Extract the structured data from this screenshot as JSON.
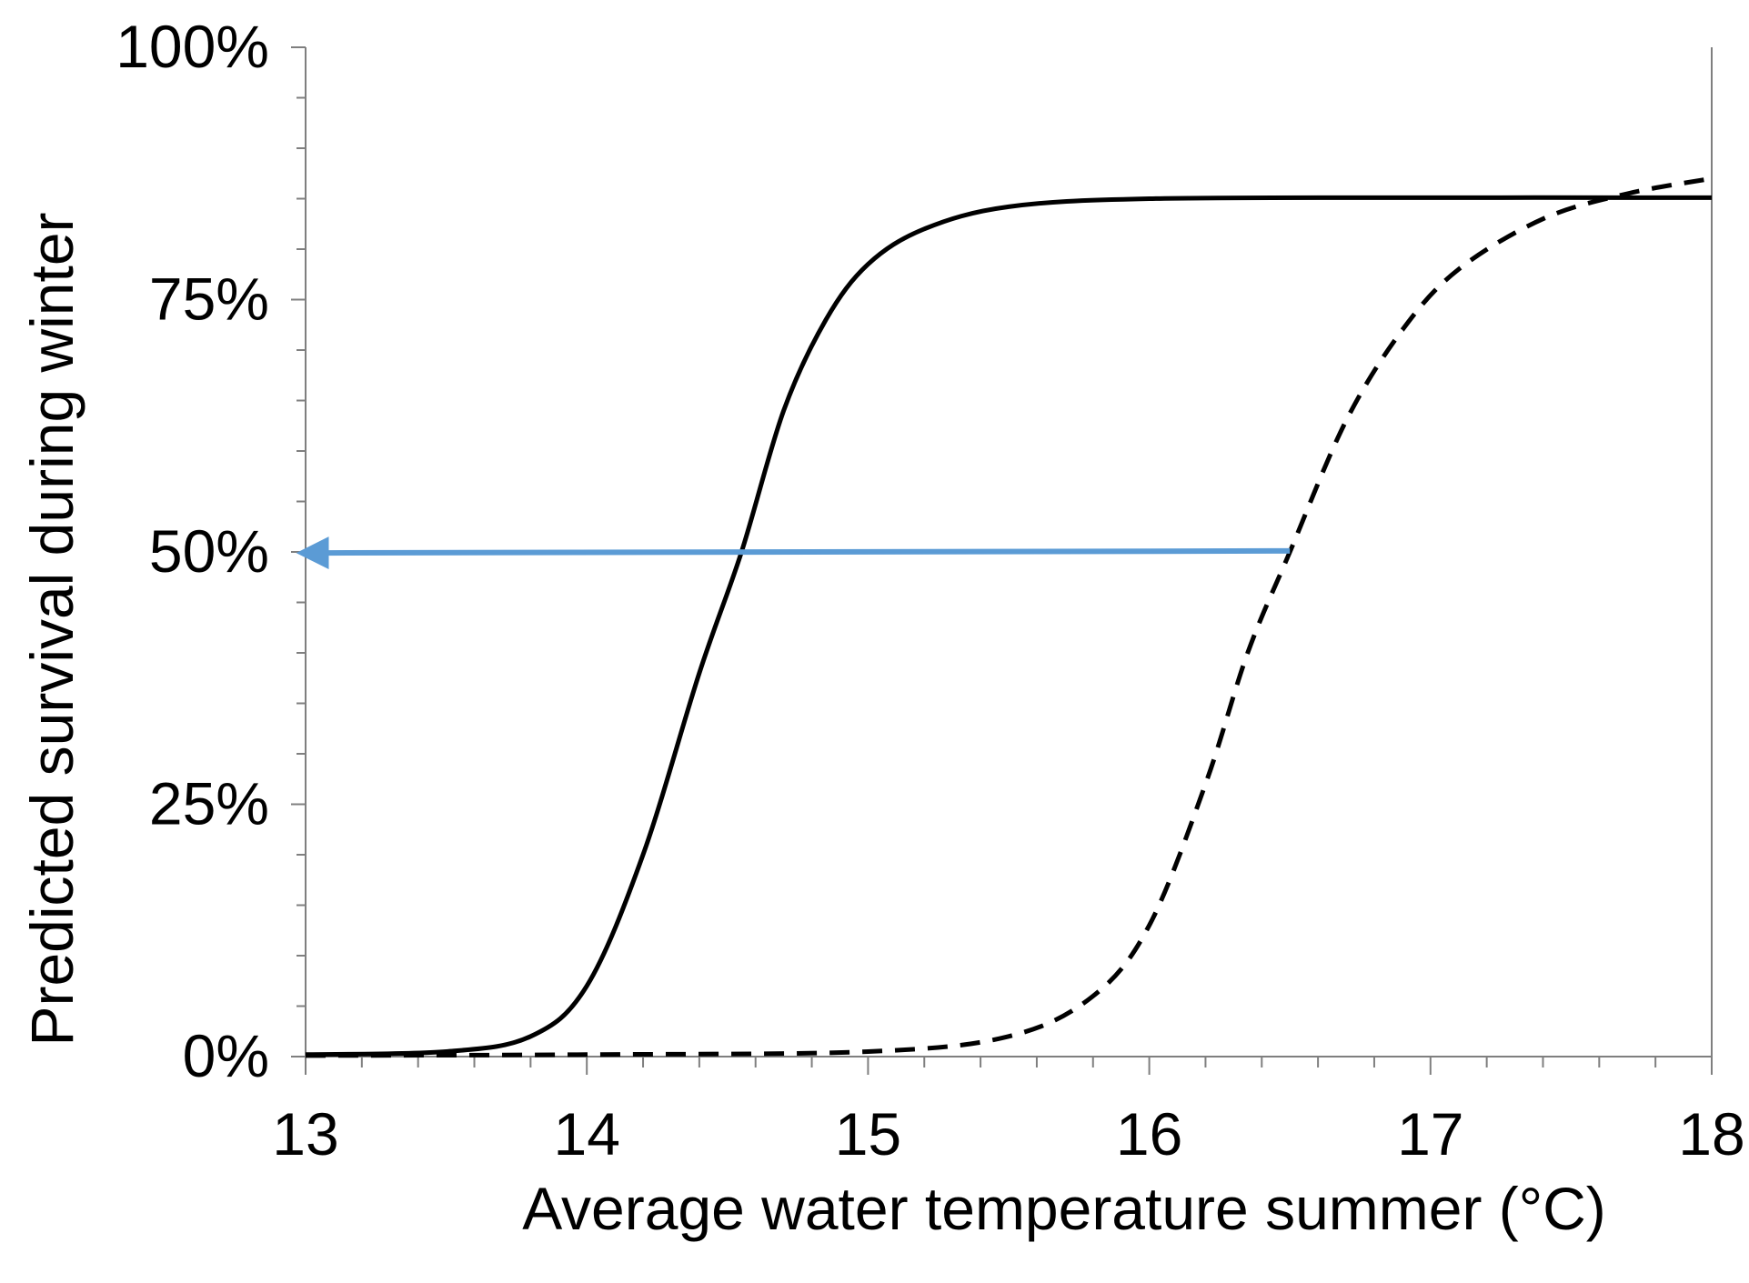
{
  "chart_data": {
    "type": "line",
    "title": "",
    "xlabel": "Average water temperature summer (°C)",
    "ylabel": "Predicted survival during winter",
    "xlim": [
      13,
      18
    ],
    "ylim": [
      0,
      1
    ],
    "x_ticks": [
      13,
      14,
      15,
      16,
      17,
      18
    ],
    "x_tick_labels": [
      "13",
      "14",
      "15",
      "16",
      "17",
      "18"
    ],
    "x_minor_step": 0.2,
    "y_ticks": [
      0,
      0.25,
      0.5,
      0.75,
      1
    ],
    "y_tick_labels": [
      "0%",
      "25%",
      "50%",
      "75%",
      "100%"
    ],
    "y_minor_step": 0.05,
    "grid": false,
    "legend": "none",
    "series": [
      {
        "name": "solid curve",
        "style": "solid",
        "color": "#000000",
        "x": [
          13.0,
          13.5,
          13.8,
          14.0,
          14.2,
          14.4,
          14.55,
          14.7,
          14.85,
          15.0,
          15.2,
          15.5,
          16.0,
          17.0,
          18.0
        ],
        "y": [
          0.002,
          0.005,
          0.02,
          0.07,
          0.2,
          0.38,
          0.5,
          0.64,
          0.73,
          0.785,
          0.82,
          0.842,
          0.85,
          0.851,
          0.851
        ]
      },
      {
        "name": "dashed curve",
        "style": "dashed",
        "color": "#000000",
        "x": [
          13.0,
          14.0,
          15.0,
          15.5,
          15.8,
          16.0,
          16.2,
          16.35,
          16.5,
          16.7,
          16.9,
          17.1,
          17.4,
          17.7,
          18.0
        ],
        "y": [
          0.001,
          0.002,
          0.005,
          0.02,
          0.06,
          0.13,
          0.27,
          0.4,
          0.5,
          0.63,
          0.72,
          0.78,
          0.83,
          0.855,
          0.87
        ]
      }
    ],
    "annotations": [
      {
        "type": "arrow",
        "color": "#5B9BD5",
        "from": {
          "x": 16.5,
          "y": 0.501
        },
        "to": {
          "x": 13.0,
          "y": 0.499
        }
      }
    ]
  }
}
